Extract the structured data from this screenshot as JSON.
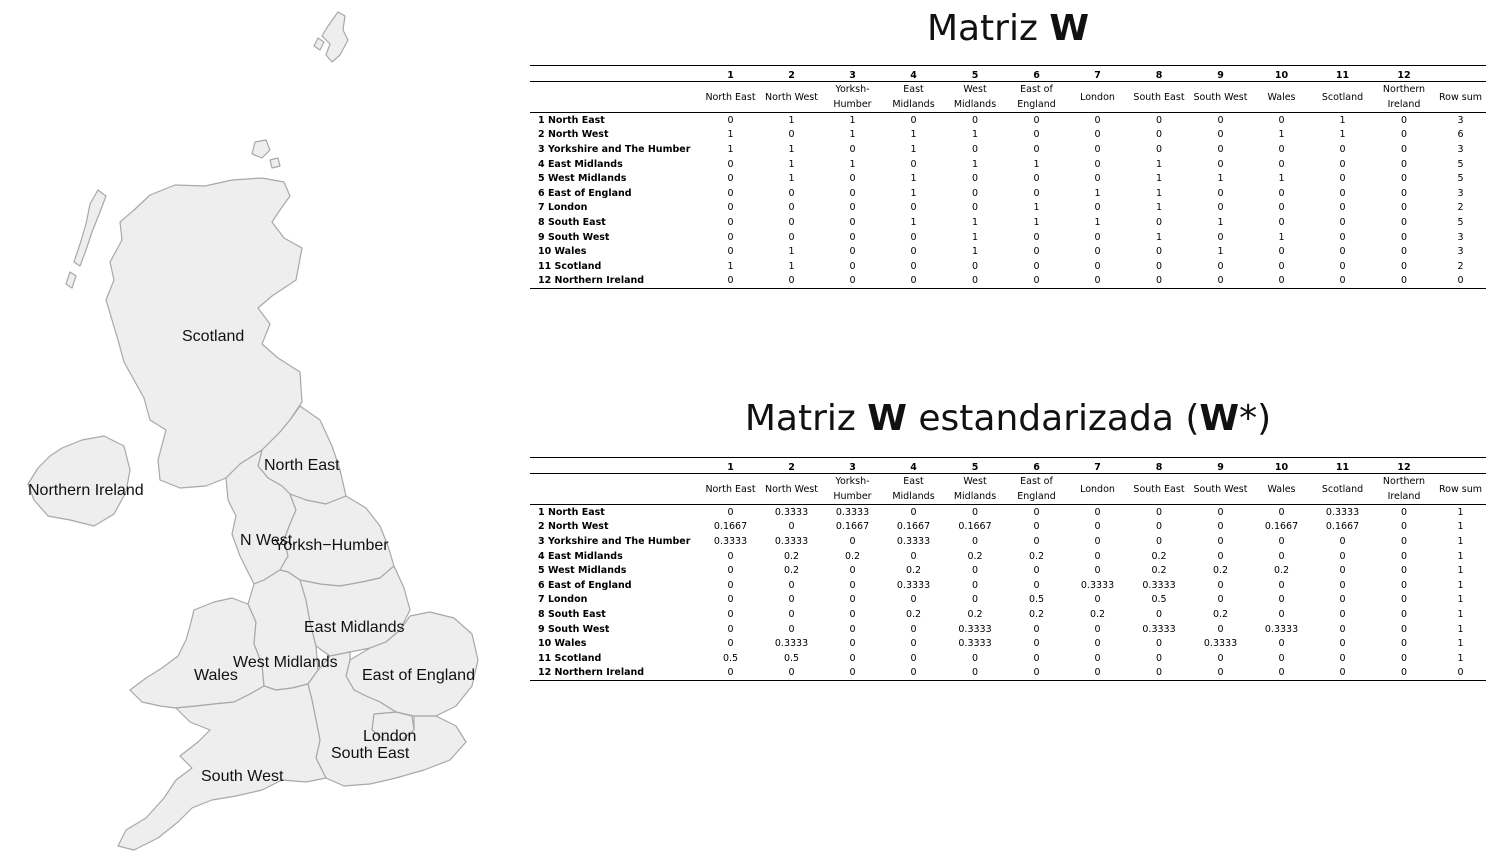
{
  "map": {
    "labels": {
      "scotland": "Scotland",
      "northern_ireland": "Northern Ireland",
      "north_east": "North East",
      "north_west": "N West",
      "yorkshire": "Yorksh−Humber",
      "east_midlands": "East Midlands",
      "west_midlands": "West Midlands",
      "wales": "Wales",
      "east_of_england": "East of England",
      "london": "London",
      "south_east": "South East",
      "south_west": "South West"
    }
  },
  "matrix_w": {
    "title_pre": "Matriz ",
    "title_bold": "W",
    "title_post": ""
  },
  "matrix_ws": {
    "title_pre": "Matriz ",
    "title_bold": "W",
    "title_mid": " estandarizada (",
    "title_bold2": "W",
    "title_post": "*)"
  },
  "columns": {
    "numbers": [
      "1",
      "2",
      "3",
      "4",
      "5",
      "6",
      "7",
      "8",
      "9",
      "10",
      "11",
      "12"
    ],
    "names": [
      "North East",
      "North West",
      "Yorksh-Humber",
      "East Midlands",
      "West Midlands",
      "East of England",
      "London",
      "South East",
      "South West",
      "Wales",
      "Scotland",
      "Northern Ireland"
    ],
    "row_sum": "Row sum"
  },
  "rows": [
    {
      "num": "1",
      "label": "North East"
    },
    {
      "num": "2",
      "label": "North West"
    },
    {
      "num": "3",
      "label": "Yorkshire and The Humber"
    },
    {
      "num": "4",
      "label": "East Midlands"
    },
    {
      "num": "5",
      "label": "West Midlands"
    },
    {
      "num": "6",
      "label": "East of England"
    },
    {
      "num": "7",
      "label": "London"
    },
    {
      "num": "8",
      "label": "South East"
    },
    {
      "num": "9",
      "label": "South West"
    },
    {
      "num": "10",
      "label": "Wales"
    },
    {
      "num": "11",
      "label": "Scotland"
    },
    {
      "num": "12",
      "label": "Northern Ireland"
    }
  ],
  "w_values": [
    [
      "0",
      "1",
      "1",
      "0",
      "0",
      "0",
      "0",
      "0",
      "0",
      "0",
      "1",
      "0",
      "3"
    ],
    [
      "1",
      "0",
      "1",
      "1",
      "1",
      "0",
      "0",
      "0",
      "0",
      "1",
      "1",
      "0",
      "6"
    ],
    [
      "1",
      "1",
      "0",
      "1",
      "0",
      "0",
      "0",
      "0",
      "0",
      "0",
      "0",
      "0",
      "3"
    ],
    [
      "0",
      "1",
      "1",
      "0",
      "1",
      "1",
      "0",
      "1",
      "0",
      "0",
      "0",
      "0",
      "5"
    ],
    [
      "0",
      "1",
      "0",
      "1",
      "0",
      "0",
      "0",
      "1",
      "1",
      "1",
      "0",
      "0",
      "5"
    ],
    [
      "0",
      "0",
      "0",
      "1",
      "0",
      "0",
      "1",
      "1",
      "0",
      "0",
      "0",
      "0",
      "3"
    ],
    [
      "0",
      "0",
      "0",
      "0",
      "0",
      "1",
      "0",
      "1",
      "0",
      "0",
      "0",
      "0",
      "2"
    ],
    [
      "0",
      "0",
      "0",
      "1",
      "1",
      "1",
      "1",
      "0",
      "1",
      "0",
      "0",
      "0",
      "5"
    ],
    [
      "0",
      "0",
      "0",
      "0",
      "1",
      "0",
      "0",
      "1",
      "0",
      "1",
      "0",
      "0",
      "3"
    ],
    [
      "0",
      "1",
      "0",
      "0",
      "1",
      "0",
      "0",
      "0",
      "1",
      "0",
      "0",
      "0",
      "3"
    ],
    [
      "1",
      "1",
      "0",
      "0",
      "0",
      "0",
      "0",
      "0",
      "0",
      "0",
      "0",
      "0",
      "2"
    ],
    [
      "0",
      "0",
      "0",
      "0",
      "0",
      "0",
      "0",
      "0",
      "0",
      "0",
      "0",
      "0",
      "0"
    ]
  ],
  "ws_values": [
    [
      "0",
      "0.3333",
      "0.3333",
      "0",
      "0",
      "0",
      "0",
      "0",
      "0",
      "0",
      "0.3333",
      "0",
      "1"
    ],
    [
      "0.1667",
      "0",
      "0.1667",
      "0.1667",
      "0.1667",
      "0",
      "0",
      "0",
      "0",
      "0.1667",
      "0.1667",
      "0",
      "1"
    ],
    [
      "0.3333",
      "0.3333",
      "0",
      "0.3333",
      "0",
      "0",
      "0",
      "0",
      "0",
      "0",
      "0",
      "0",
      "1"
    ],
    [
      "0",
      "0.2",
      "0.2",
      "0",
      "0.2",
      "0.2",
      "0",
      "0.2",
      "0",
      "0",
      "0",
      "0",
      "1"
    ],
    [
      "0",
      "0.2",
      "0",
      "0.2",
      "0",
      "0",
      "0",
      "0.2",
      "0.2",
      "0.2",
      "0",
      "0",
      "1"
    ],
    [
      "0",
      "0",
      "0",
      "0.3333",
      "0",
      "0",
      "0.3333",
      "0.3333",
      "0",
      "0",
      "0",
      "0",
      "1"
    ],
    [
      "0",
      "0",
      "0",
      "0",
      "0",
      "0.5",
      "0",
      "0.5",
      "0",
      "0",
      "0",
      "0",
      "1"
    ],
    [
      "0",
      "0",
      "0",
      "0.2",
      "0.2",
      "0.2",
      "0.2",
      "0",
      "0.2",
      "0",
      "0",
      "0",
      "1"
    ],
    [
      "0",
      "0",
      "0",
      "0",
      "0.3333",
      "0",
      "0",
      "0.3333",
      "0",
      "0.3333",
      "0",
      "0",
      "1"
    ],
    [
      "0",
      "0.3333",
      "0",
      "0",
      "0.3333",
      "0",
      "0",
      "0",
      "0.3333",
      "0",
      "0",
      "0",
      "1"
    ],
    [
      "0.5",
      "0.5",
      "0",
      "0",
      "0",
      "0",
      "0",
      "0",
      "0",
      "0",
      "0",
      "0",
      "1"
    ],
    [
      "0",
      "0",
      "0",
      "0",
      "0",
      "0",
      "0",
      "0",
      "0",
      "0",
      "0",
      "0",
      "0"
    ]
  ]
}
